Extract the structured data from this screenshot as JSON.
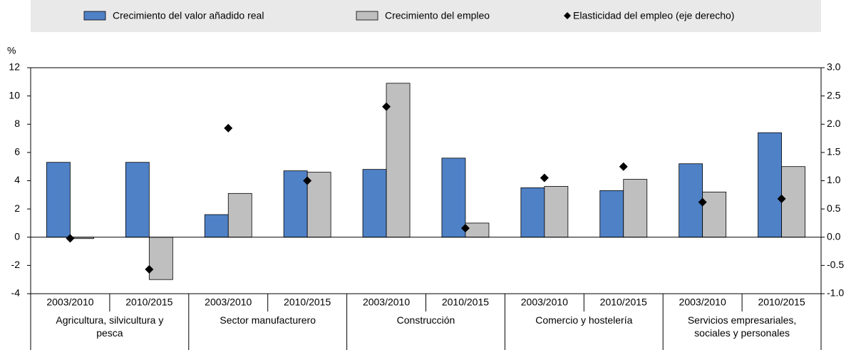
{
  "chart_data": {
    "type": "bar",
    "y_unit": "%",
    "categories": [
      "2003/2010",
      "2010/2015",
      "2003/2010",
      "2010/2015",
      "2003/2010",
      "2010/2015",
      "2003/2010",
      "2010/2015",
      "2003/2010",
      "2010/2015"
    ],
    "groups": [
      "Agricultura, silvicultura y pesca",
      "Sector manufacturero",
      "Construcción",
      "Comercio y hostelería",
      "Servicios empresariales, sociales y personales"
    ],
    "series": [
      {
        "name": "Crecimiento del valor añadido real",
        "color": "#4f81c7",
        "values": [
          5.3,
          5.3,
          1.6,
          4.7,
          4.8,
          5.6,
          3.5,
          3.3,
          5.2,
          7.4
        ]
      },
      {
        "name": "Crecimiento del empleo",
        "color": "#bfbfbf",
        "values": [
          -0.1,
          -3.0,
          3.1,
          4.6,
          10.9,
          1.0,
          3.6,
          4.1,
          3.2,
          5.0
        ]
      },
      {
        "name": "Elasticidad del empleo (eje derecho)",
        "color": "#000000",
        "type": "scatter",
        "axis": "y2",
        "values": [
          -0.02,
          -0.57,
          1.93,
          1.0,
          2.31,
          0.16,
          1.05,
          1.25,
          0.62,
          0.68
        ]
      }
    ],
    "ylim": [
      -4,
      12
    ],
    "yticks": [
      -4,
      -2,
      0,
      2,
      4,
      6,
      8,
      10,
      12
    ],
    "y2lim": [
      -1,
      3
    ],
    "y2ticks": [
      {
        "value": -1,
        "label": "-1.0"
      },
      {
        "value": -0.5,
        "label": "-0.5"
      },
      {
        "value": 0,
        "label": "0.0"
      },
      {
        "value": 0.5,
        "label": "0.5"
      },
      {
        "value": 1,
        "label": "1.0"
      },
      {
        "value": 1.5,
        "label": "1.5"
      },
      {
        "value": 2,
        "label": "2.0"
      },
      {
        "value": 2.5,
        "label": "2.5"
      },
      {
        "value": 3,
        "label": "3.0"
      }
    ],
    "legend": "top"
  }
}
